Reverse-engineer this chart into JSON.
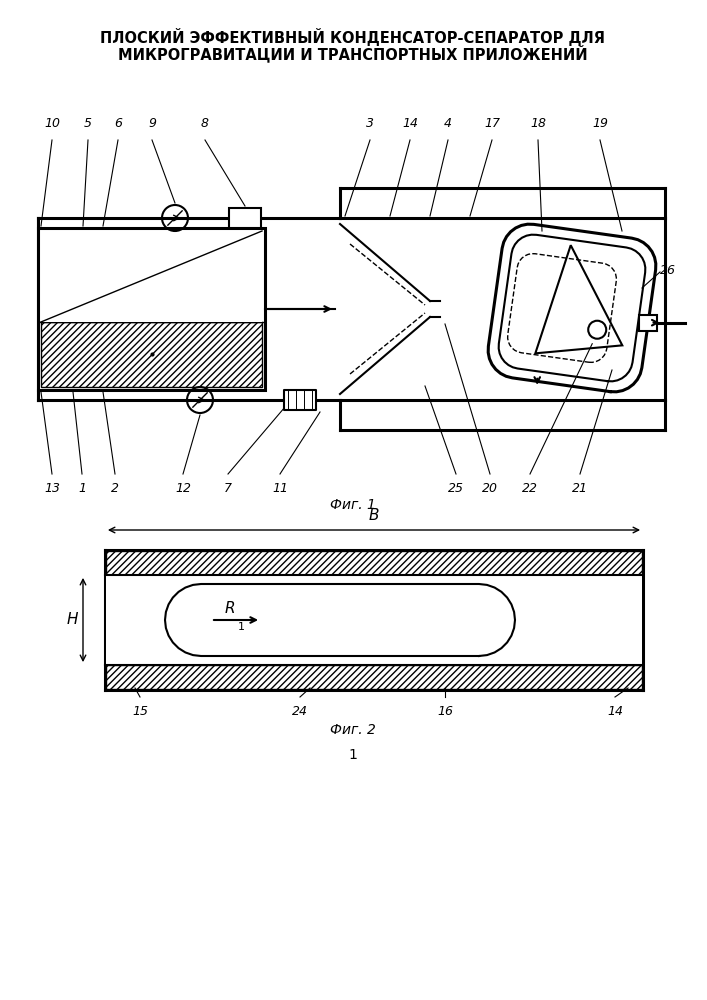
{
  "title_line1": "ПЛОСКИЙ ЭФФЕКТИВНЫЙ КОНДЕНСАТОР-СЕПАРАТОР ДЛЯ",
  "title_line2": "МИКРОГРАВИТАЦИИ И ТРАНСПОРТНЫХ ПРИЛОЖЕНИЙ",
  "fig1_caption": "Фиг. 1",
  "fig2_caption": "Фиг. 2",
  "page_num": "1",
  "bg_color": "#ffffff",
  "line_color": "#000000"
}
